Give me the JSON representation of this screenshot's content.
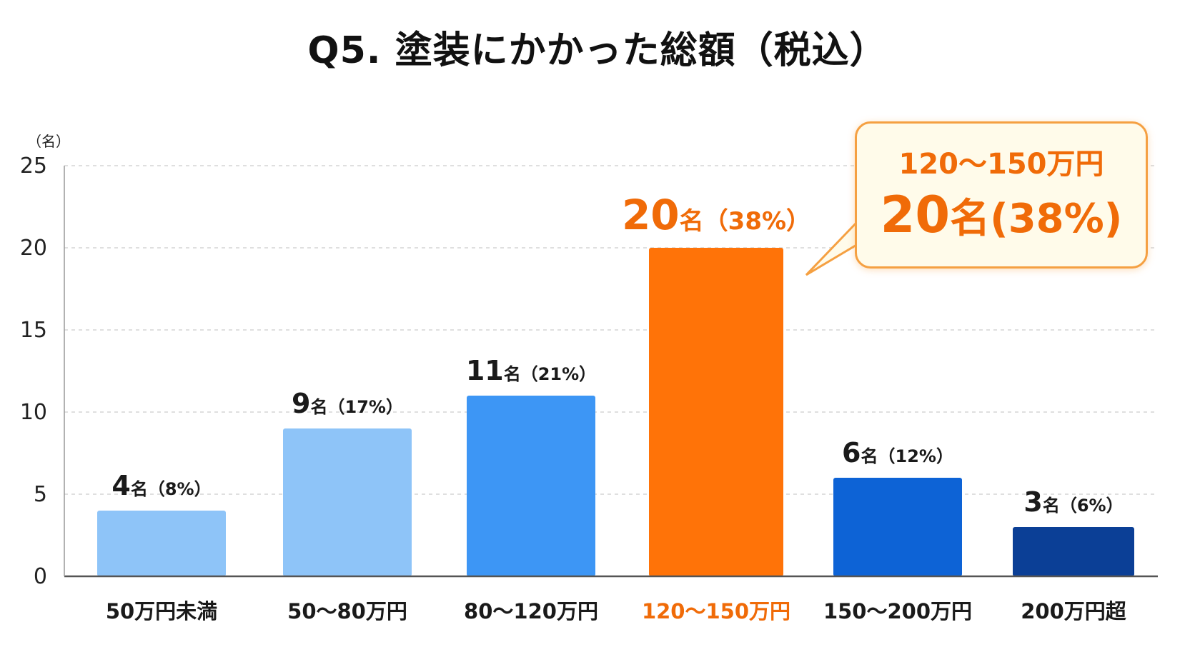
{
  "title": "Q5. 塗装にかかった総額（税込）",
  "callout": {
    "line1": "120～150万円",
    "value": "20",
    "unit": "名",
    "pct": "(38%)"
  },
  "chart_data": {
    "type": "bar",
    "title": "Q5. 塗装にかかった総額（税込）",
    "ylabel": "（名）",
    "ylim": [
      0,
      25
    ],
    "yticks": [
      0,
      5,
      10,
      15,
      20,
      25
    ],
    "grid": true,
    "categories": [
      "50万円未満",
      "50～80万円",
      "80～120万円",
      "120～150万円",
      "150～200万円",
      "200万円超"
    ],
    "values": [
      4,
      9,
      11,
      20,
      6,
      3
    ],
    "percents": [
      "8%",
      "17%",
      "21%",
      "38%",
      "12%",
      "6%"
    ],
    "data_labels": [
      "4名（8%）",
      "9名（17%）",
      "11名（21%）",
      "20名（38%）",
      "6名（12%）",
      "3名（6%）"
    ],
    "colors": [
      "#8ec4f8",
      "#8ec4f8",
      "#3d96f5",
      "#ff7308",
      "#0d63d6",
      "#0b3f96"
    ],
    "highlight_index": 3,
    "highlight_color": "#f06b08"
  }
}
